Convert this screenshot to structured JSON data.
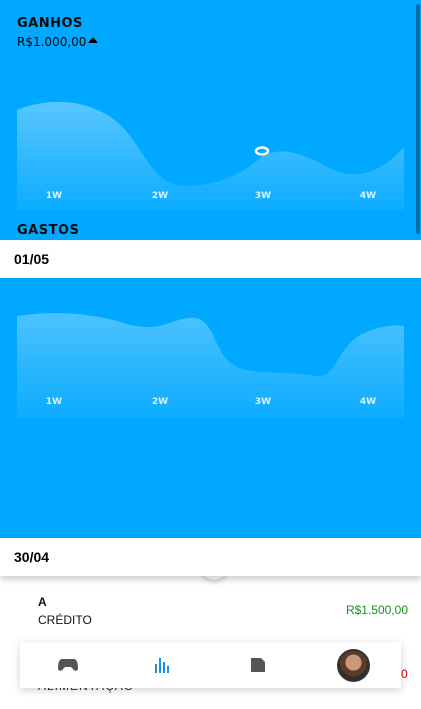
{
  "ganhos": {
    "title": "GANHOS",
    "amount": "R$1.000,00"
  },
  "gastos": {
    "title": "GASTOS"
  },
  "weeks": [
    "1W",
    "2W",
    "3W",
    "4W"
  ],
  "dates": {
    "first": "01/05",
    "second": "30/04"
  },
  "transactions": [
    {
      "title": "A",
      "subtitle": "CRÉDITO",
      "value": "R$1.500,00",
      "value_color": "#1a8f1a"
    },
    {
      "title": "ALIMENTAÇÃO",
      "value": "0",
      "value_color": "#d00000"
    }
  ],
  "nav": [
    "gamepad-icon",
    "bar-chart-icon",
    "document-icon",
    "avatar"
  ],
  "colors": {
    "accent": "#00a8ff",
    "nav_active": "#1e90d6",
    "nav_inactive": "#555555"
  }
}
